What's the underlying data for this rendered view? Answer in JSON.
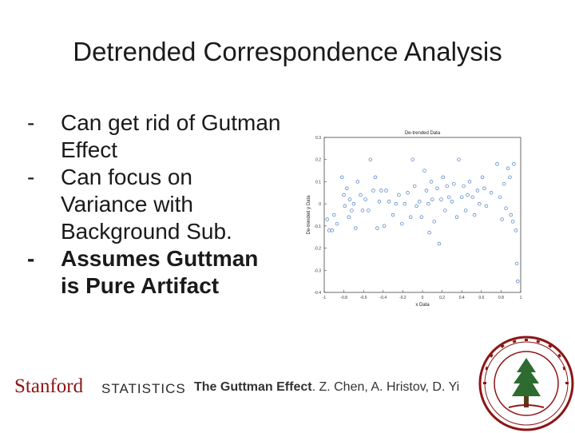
{
  "slide": {
    "title": "Detrended Correspondence Analysis",
    "bullets": [
      {
        "dash": "-",
        "text": "Can get rid of Gutman Effect",
        "bold": false
      },
      {
        "dash": "-",
        "text": "Can focus on Variance with Background Sub.",
        "bold": false
      },
      {
        "dash": "-",
        "text": "Assumes Guttman is Pure Artifact",
        "bold": true
      }
    ]
  },
  "footer": {
    "logo": "Stanford",
    "dept": "STATISTICS",
    "cite_bold": "The Guttman Effect",
    "cite_rest": ". Z. Chen, A. Hristov, D. Yi",
    "seal_colors": {
      "primary": "#8c1515",
      "secondary": "#2e6b30"
    }
  },
  "chart_data": {
    "type": "scatter",
    "title": "De-trended Data",
    "xlabel": "x Data",
    "ylabel": "De-trended y Data",
    "xlim": [
      -1,
      1
    ],
    "ylim": [
      -0.4,
      0.3
    ],
    "xticks": [
      "-1",
      "-0.8",
      "-0.6",
      "-0.4",
      "-0.2",
      "0",
      "0.2",
      "0.4",
      "0.6",
      "0.8",
      "1"
    ],
    "yticks": [
      "0.3",
      "0.2",
      "0.1",
      "0",
      "-0.1",
      "-0.2",
      "-0.3",
      "-0.4"
    ],
    "grid": false,
    "marker_color": "#4a7ec2",
    "points": [
      {
        "x": -0.97,
        "y": -0.07
      },
      {
        "x": -0.95,
        "y": -0.12
      },
      {
        "x": -0.92,
        "y": -0.12
      },
      {
        "x": -0.9,
        "y": -0.05
      },
      {
        "x": -0.87,
        "y": -0.09
      },
      {
        "x": -0.82,
        "y": 0.12
      },
      {
        "x": -0.8,
        "y": 0.04
      },
      {
        "x": -0.79,
        "y": -0.01
      },
      {
        "x": -0.77,
        "y": 0.07
      },
      {
        "x": -0.75,
        "y": -0.06
      },
      {
        "x": -0.74,
        "y": 0.02
      },
      {
        "x": -0.72,
        "y": -0.03
      },
      {
        "x": -0.7,
        "y": 0.0
      },
      {
        "x": -0.68,
        "y": -0.11
      },
      {
        "x": -0.66,
        "y": 0.1
      },
      {
        "x": -0.63,
        "y": 0.04
      },
      {
        "x": -0.61,
        "y": -0.03
      },
      {
        "x": -0.58,
        "y": 0.02
      },
      {
        "x": -0.55,
        "y": -0.03
      },
      {
        "x": -0.53,
        "y": 0.2
      },
      {
        "x": -0.5,
        "y": 0.06
      },
      {
        "x": -0.48,
        "y": 0.12
      },
      {
        "x": -0.46,
        "y": -0.11
      },
      {
        "x": -0.44,
        "y": 0.01
      },
      {
        "x": -0.42,
        "y": 0.06
      },
      {
        "x": -0.39,
        "y": -0.1
      },
      {
        "x": -0.37,
        "y": 0.06
      },
      {
        "x": -0.34,
        "y": 0.01
      },
      {
        "x": -0.3,
        "y": -0.05
      },
      {
        "x": -0.27,
        "y": 0.0
      },
      {
        "x": -0.24,
        "y": 0.04
      },
      {
        "x": -0.21,
        "y": -0.09
      },
      {
        "x": -0.18,
        "y": 0.0
      },
      {
        "x": -0.15,
        "y": 0.05
      },
      {
        "x": -0.12,
        "y": -0.06
      },
      {
        "x": -0.1,
        "y": 0.2
      },
      {
        "x": -0.08,
        "y": 0.08
      },
      {
        "x": -0.06,
        "y": -0.01
      },
      {
        "x": -0.03,
        "y": 0.01
      },
      {
        "x": -0.01,
        "y": -0.06
      },
      {
        "x": 0.02,
        "y": 0.15
      },
      {
        "x": 0.04,
        "y": 0.06
      },
      {
        "x": 0.06,
        "y": 0.0
      },
      {
        "x": 0.07,
        "y": -0.13
      },
      {
        "x": 0.09,
        "y": 0.1
      },
      {
        "x": 0.1,
        "y": 0.02
      },
      {
        "x": 0.12,
        "y": -0.08
      },
      {
        "x": 0.15,
        "y": 0.07
      },
      {
        "x": 0.17,
        "y": -0.18
      },
      {
        "x": 0.19,
        "y": 0.02
      },
      {
        "x": 0.21,
        "y": 0.12
      },
      {
        "x": 0.23,
        "y": -0.03
      },
      {
        "x": 0.25,
        "y": 0.08
      },
      {
        "x": 0.27,
        "y": 0.03
      },
      {
        "x": 0.3,
        "y": 0.01
      },
      {
        "x": 0.32,
        "y": 0.09
      },
      {
        "x": 0.35,
        "y": -0.06
      },
      {
        "x": 0.37,
        "y": 0.2
      },
      {
        "x": 0.4,
        "y": 0.03
      },
      {
        "x": 0.42,
        "y": 0.08
      },
      {
        "x": 0.44,
        "y": -0.03
      },
      {
        "x": 0.46,
        "y": 0.04
      },
      {
        "x": 0.48,
        "y": 0.1
      },
      {
        "x": 0.51,
        "y": 0.03
      },
      {
        "x": 0.53,
        "y": -0.05
      },
      {
        "x": 0.56,
        "y": 0.06
      },
      {
        "x": 0.58,
        "y": 0.0
      },
      {
        "x": 0.61,
        "y": 0.12
      },
      {
        "x": 0.63,
        "y": 0.07
      },
      {
        "x": 0.65,
        "y": -0.01
      },
      {
        "x": 0.7,
        "y": 0.05
      },
      {
        "x": 0.76,
        "y": 0.18
      },
      {
        "x": 0.79,
        "y": 0.03
      },
      {
        "x": 0.81,
        "y": -0.07
      },
      {
        "x": 0.83,
        "y": 0.09
      },
      {
        "x": 0.85,
        "y": -0.02
      },
      {
        "x": 0.87,
        "y": 0.16
      },
      {
        "x": 0.89,
        "y": 0.12
      },
      {
        "x": 0.9,
        "y": -0.05
      },
      {
        "x": 0.92,
        "y": -0.08
      },
      {
        "x": 0.93,
        "y": 0.18
      },
      {
        "x": 0.95,
        "y": -0.12
      },
      {
        "x": 0.96,
        "y": -0.27
      },
      {
        "x": 0.97,
        "y": -0.35
      }
    ]
  }
}
